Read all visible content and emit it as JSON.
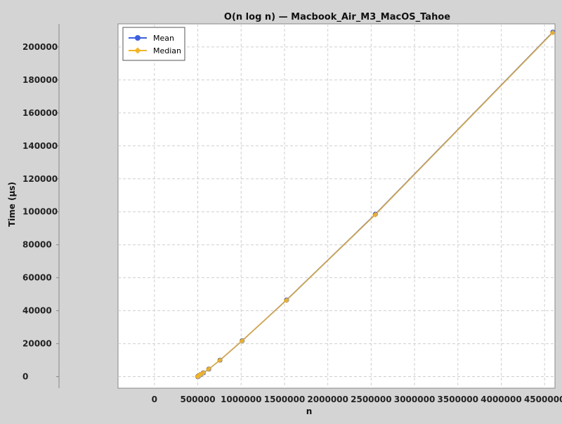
{
  "chart_data": {
    "type": "line",
    "title": "O(n log n) — Macbook_Air_M3_MacOS_Tahoe",
    "xlabel": "n",
    "ylabel": "Time (µs)",
    "xlim": [
      -420000,
      4620000
    ],
    "ylim": [
      -7000,
      214000
    ],
    "x_ticks": [
      {
        "value": 0,
        "label": "0"
      },
      {
        "value": 500000,
        "label": "500000"
      },
      {
        "value": 1000000,
        "label": "1000000"
      },
      {
        "value": 1500000,
        "label": "1500000"
      },
      {
        "value": 2000000,
        "label": "2000000"
      },
      {
        "value": 2500000,
        "label": "2500000"
      },
      {
        "value": 3000000,
        "label": "3000000"
      },
      {
        "value": 3500000,
        "label": "3500000"
      },
      {
        "value": 4000000,
        "label": "4000000"
      },
      {
        "value": 4500000,
        "label": "4500000"
      }
    ],
    "y_ticks": [
      {
        "value": 0,
        "label": "0"
      },
      {
        "value": 20000,
        "label": "20000"
      },
      {
        "value": 40000,
        "label": "40000"
      },
      {
        "value": 60000,
        "label": "60000"
      },
      {
        "value": 80000,
        "label": "80000"
      },
      {
        "value": 100000,
        "label": "100000"
      },
      {
        "value": 120000,
        "label": "120000"
      },
      {
        "value": 140000,
        "label": "140000"
      },
      {
        "value": 160000,
        "label": "160000"
      },
      {
        "value": 180000,
        "label": "180000"
      },
      {
        "value": 200000,
        "label": "200000"
      }
    ],
    "grid": true,
    "legend_position": "top-left",
    "series": [
      {
        "name": "Mean",
        "color": "#3c5fe0",
        "marker": "circle",
        "x": [
          501000,
          502000,
          504000,
          508000,
          516000,
          532000,
          564000,
          628000,
          756000,
          1012000,
          1524000,
          2548000,
          4596000
        ],
        "y": [
          0,
          100,
          200,
          400,
          700,
          1200,
          2300,
          4600,
          10000,
          21800,
          46500,
          98500,
          209000
        ]
      },
      {
        "name": "Median",
        "color": "#f2b525",
        "marker": "diamond",
        "x": [
          501000,
          502000,
          504000,
          508000,
          516000,
          532000,
          564000,
          628000,
          756000,
          1012000,
          1524000,
          2548000,
          4596000
        ],
        "y": [
          0,
          100,
          200,
          400,
          700,
          1200,
          2300,
          4600,
          9900,
          21700,
          46300,
          98200,
          208700
        ]
      }
    ]
  }
}
